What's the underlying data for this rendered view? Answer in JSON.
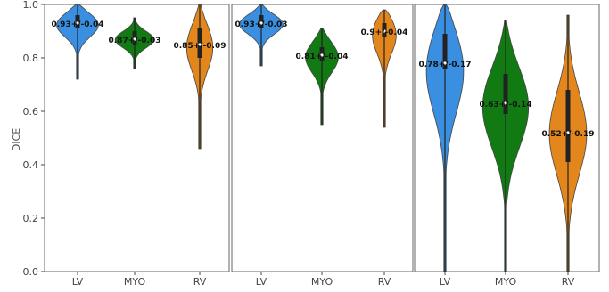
{
  "chart_data": [
    {
      "type": "violin",
      "ylabel": "DICE",
      "ylim": [
        0,
        1
      ],
      "yticks": [
        "0.0",
        "0.2",
        "0.4",
        "0.6",
        "0.8",
        "1.0"
      ],
      "categories": [
        "LV",
        "MYO",
        "RV"
      ],
      "colors": [
        "#3a8fe0",
        "#127a12",
        "#e3861c"
      ],
      "series": [
        {
          "category": "LV",
          "label": "0.93+/-0.04",
          "mean": 0.93,
          "min": 0.72,
          "max": 1.0,
          "q1": 0.91,
          "q3": 0.96
        },
        {
          "category": "MYO",
          "label": "0.87+/-0.03",
          "mean": 0.87,
          "min": 0.76,
          "max": 0.95,
          "q1": 0.85,
          "q3": 0.9
        },
        {
          "category": "RV",
          "label": "0.85+/-0.09",
          "mean": 0.85,
          "min": 0.46,
          "max": 1.0,
          "q1": 0.8,
          "q3": 0.91
        }
      ]
    },
    {
      "type": "violin",
      "ylim": [
        0,
        1
      ],
      "categories": [
        "LV",
        "MYO",
        "RV"
      ],
      "colors": [
        "#3a8fe0",
        "#127a12",
        "#e3861c"
      ],
      "series": [
        {
          "category": "LV",
          "label": "0.93+/-0.03",
          "mean": 0.93,
          "min": 0.77,
          "max": 1.0,
          "q1": 0.91,
          "q3": 0.96
        },
        {
          "category": "MYO",
          "label": "0.81+/-0.04",
          "mean": 0.81,
          "min": 0.55,
          "max": 0.91,
          "q1": 0.79,
          "q3": 0.84
        },
        {
          "category": "RV",
          "label": "0.9+/-0.04",
          "mean": 0.9,
          "min": 0.54,
          "max": 0.98,
          "q1": 0.88,
          "q3": 0.93
        }
      ]
    },
    {
      "type": "violin",
      "ylim": [
        0,
        1
      ],
      "categories": [
        "LV",
        "MYO",
        "RV"
      ],
      "colors": [
        "#3a8fe0",
        "#127a12",
        "#e3861c"
      ],
      "series": [
        {
          "category": "LV",
          "label": "0.78+/-0.17",
          "mean": 0.78,
          "min": 0.0,
          "max": 1.0,
          "q1": 0.76,
          "q3": 0.89
        },
        {
          "category": "MYO",
          "label": "0.63+/-0.14",
          "mean": 0.63,
          "min": 0.0,
          "max": 0.94,
          "q1": 0.59,
          "q3": 0.74
        },
        {
          "category": "RV",
          "label": "0.52+/-0.19",
          "mean": 0.52,
          "min": 0.0,
          "max": 0.96,
          "q1": 0.41,
          "q3": 0.68
        }
      ]
    }
  ]
}
